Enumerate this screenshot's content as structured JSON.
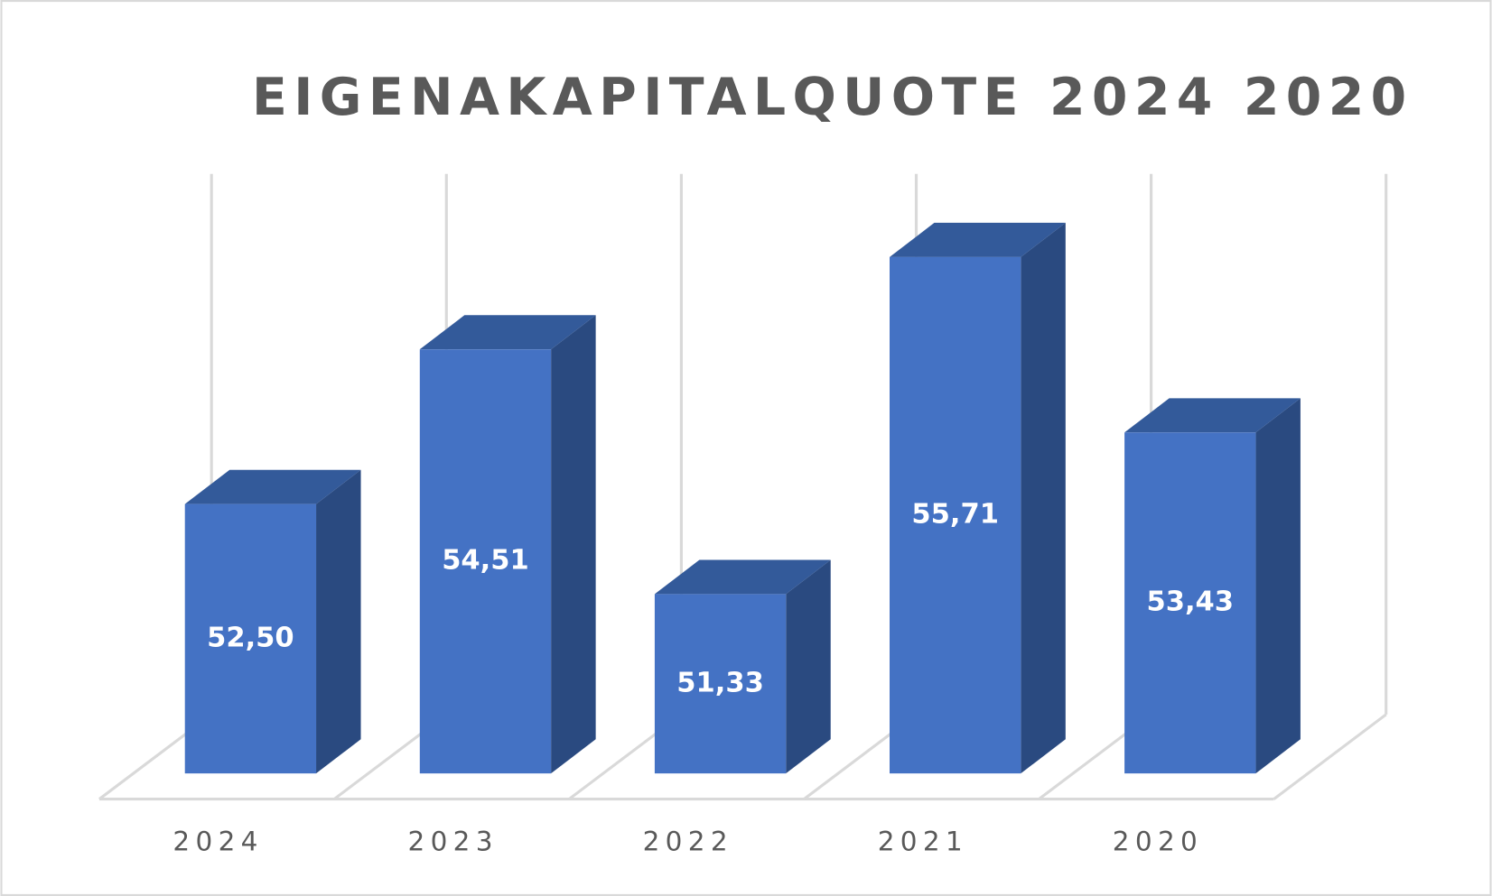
{
  "chart_data": {
    "type": "bar3d",
    "title": "EIGENAKAPITALQUOTE 2024 2020",
    "categories": [
      "2024",
      "2023",
      "2022",
      "2021",
      "2020"
    ],
    "values": [
      52.5,
      54.51,
      51.33,
      55.71,
      53.43
    ],
    "value_labels": [
      "52,50",
      "54,51",
      "51,33",
      "55,71",
      "53,43"
    ],
    "color": "#4472c4",
    "ylim": [
      49,
      57
    ]
  }
}
